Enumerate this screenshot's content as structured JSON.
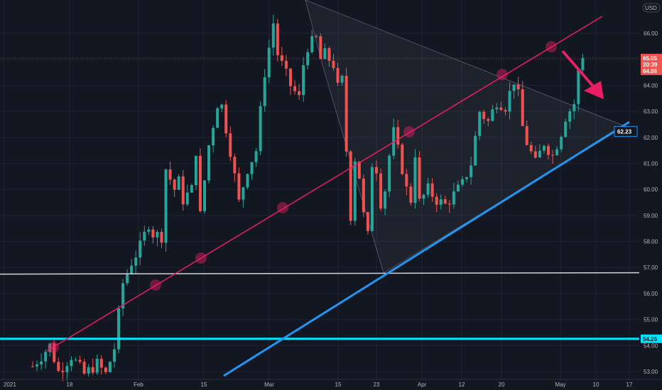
{
  "currency": "USD",
  "chart_data": {
    "type": "candlestick",
    "title": "",
    "x_labels": [
      "2021",
      "18",
      "Feb",
      "15",
      "Mar",
      "15",
      "23",
      "Apr",
      "12",
      "20",
      "May",
      "10",
      "17"
    ],
    "y_ticks": [
      53.0,
      54.0,
      55.0,
      56.0,
      57.0,
      58.0,
      59.0,
      60.0,
      61.0,
      62.0,
      63.0,
      64.0,
      65.0,
      66.0
    ],
    "ylim": [
      52.8,
      67.2
    ],
    "grid": true,
    "price_path": [
      [
        0,
        53.2
      ],
      [
        4,
        54.0
      ],
      [
        6,
        53.0
      ],
      [
        9,
        53.6
      ],
      [
        12,
        52.9
      ],
      [
        15,
        53.3
      ],
      [
        17,
        52.9
      ],
      [
        19,
        53.9
      ],
      [
        20,
        55.2
      ],
      [
        21,
        56.4
      ],
      [
        23,
        57.2
      ],
      [
        25,
        57.8
      ],
      [
        27,
        58.7
      ],
      [
        28,
        58.3
      ],
      [
        30,
        58.2
      ],
      [
        31,
        60.8
      ],
      [
        33,
        60.0
      ],
      [
        34,
        60.3
      ],
      [
        35,
        59.6
      ],
      [
        37,
        60.0
      ],
      [
        38,
        61.5
      ],
      [
        39,
        59.0
      ],
      [
        41,
        61.7
      ],
      [
        43,
        63.3
      ],
      [
        44,
        63.2
      ],
      [
        46,
        61.5
      ],
      [
        48,
        59.5
      ],
      [
        50,
        60.8
      ],
      [
        52,
        61.5
      ],
      [
        54,
        64.5
      ],
      [
        56,
        66.4
      ],
      [
        57,
        65.2
      ],
      [
        58,
        64.8
      ],
      [
        60,
        64.0
      ],
      [
        62,
        63.5
      ],
      [
        63,
        64.8
      ],
      [
        64,
        65.5
      ],
      [
        66,
        65.8
      ],
      [
        67,
        65.0
      ],
      [
        68,
        65.2
      ],
      [
        70,
        64.8
      ],
      [
        71,
        63.9
      ],
      [
        72,
        64.2
      ],
      [
        73,
        61.5
      ],
      [
        74,
        59.0
      ],
      [
        75,
        61.2
      ],
      [
        76,
        60.5
      ],
      [
        77,
        59.0
      ],
      [
        78,
        58.2
      ],
      [
        79,
        61.0
      ],
      [
        80,
        60.8
      ],
      [
        81,
        59.5
      ],
      [
        82,
        60.0
      ],
      [
        83,
        61.3
      ],
      [
        84,
        62.2
      ],
      [
        85,
        61.5
      ],
      [
        86,
        60.8
      ],
      [
        87,
        60.0
      ],
      [
        88,
        59.6
      ],
      [
        89,
        61.4
      ],
      [
        90,
        59.5
      ],
      [
        92,
        60.0
      ],
      [
        94,
        59.6
      ],
      [
        96,
        59.4
      ],
      [
        98,
        59.8
      ],
      [
        100,
        60.2
      ],
      [
        102,
        61.0
      ],
      [
        104,
        63.0
      ],
      [
        106,
        62.6
      ],
      [
        108,
        63.4
      ],
      [
        110,
        63.2
      ],
      [
        112,
        64.2
      ],
      [
        113,
        63.6
      ],
      [
        114,
        62.4
      ],
      [
        115,
        61.8
      ],
      [
        117,
        61.0
      ],
      [
        119,
        61.8
      ],
      [
        121,
        61.3
      ],
      [
        123,
        62.2
      ],
      [
        124,
        62.8
      ],
      [
        126,
        63.3
      ],
      [
        127,
        64.5
      ],
      [
        128,
        65.05
      ]
    ],
    "current_price": 65.05,
    "countdown": "20:39",
    "prev_close": 64.86,
    "level_label": 62.23,
    "support_level": 54.26,
    "horizontal_line_white": 56.8
  },
  "colors": {
    "background": "#131722",
    "up_candle": "#26a69a",
    "down_candle": "#ef5350",
    "pink_channel": "#e91e63",
    "blue_line": "#2196f3",
    "cyan_line": "#00e5ff",
    "white_line": "#d1d4dc",
    "arrow": "#e91e63"
  }
}
